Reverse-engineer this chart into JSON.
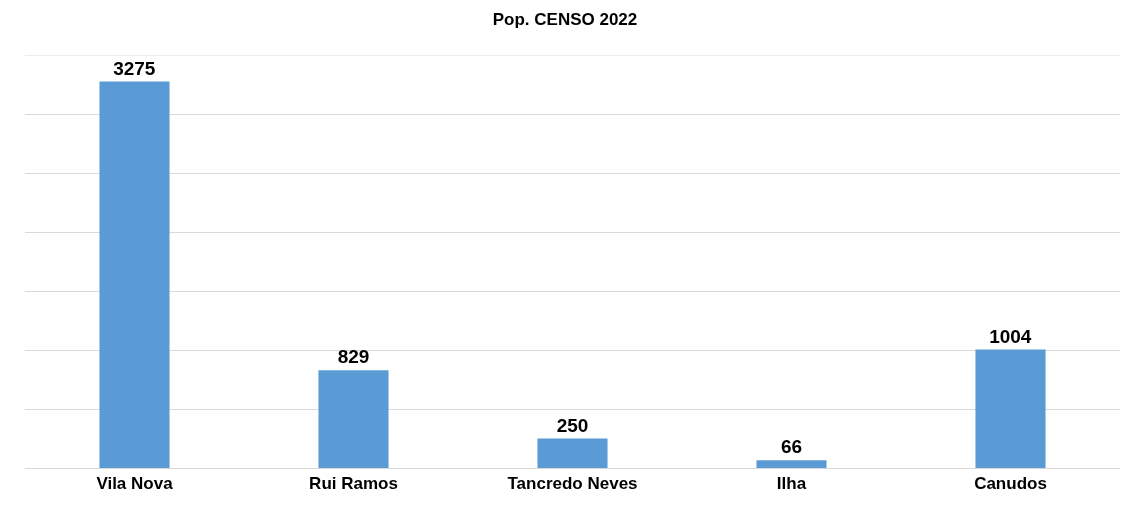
{
  "chart_data": {
    "type": "bar",
    "title": "Pop. CENSO 2022",
    "categories": [
      "Vila Nova",
      "Rui Ramos",
      "Tancredo Neves",
      "Ilha",
      "Canudos"
    ],
    "values": [
      3275,
      829,
      250,
      66,
      1004
    ],
    "color": "#5b9bd5",
    "data_labels": true,
    "ylim": [
      0,
      3500
    ],
    "yticks": [
      {
        "value": 0,
        "label": null
      },
      {
        "value": 500,
        "label": null
      },
      {
        "value": 1000,
        "label": null
      },
      {
        "value": 1500,
        "label": null
      },
      {
        "value": 2000,
        "label": null
      },
      {
        "value": 2500,
        "label": null
      },
      {
        "value": 3000,
        "label": null
      },
      {
        "value": 3500,
        "label": null
      }
    ],
    "grid": "y",
    "tick_labels": "x"
  }
}
